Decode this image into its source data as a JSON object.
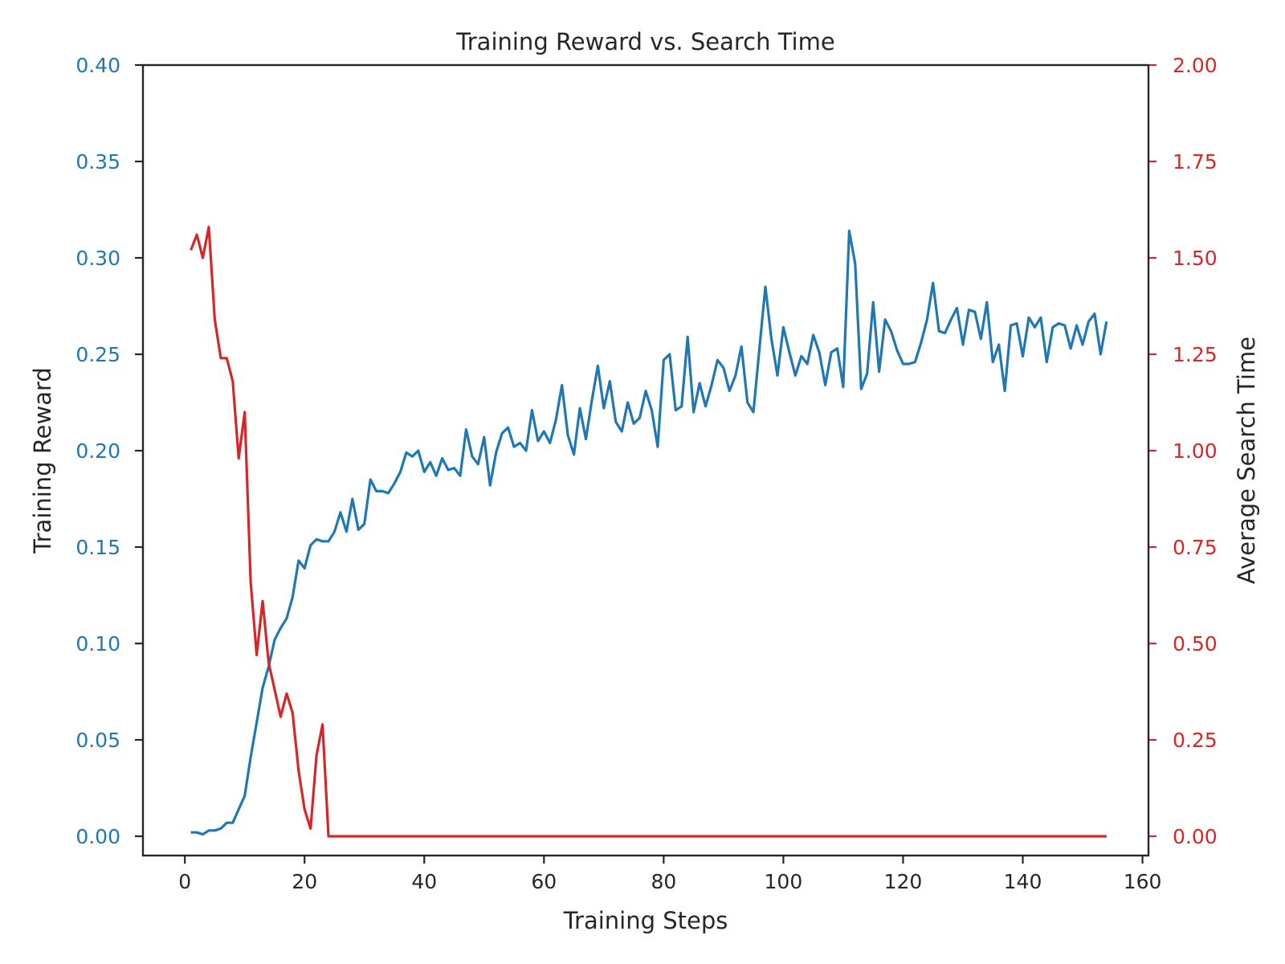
{
  "chart_data": {
    "type": "line",
    "title": "Training Reward vs. Search Time",
    "xlabel": "Training Steps",
    "xlim": [
      -7,
      161
    ],
    "xticks": [
      0,
      20,
      40,
      60,
      80,
      100,
      120,
      140,
      160
    ],
    "grid": false,
    "left_axis": {
      "label": "Training Reward",
      "color": "#1f77b4",
      "ylim": [
        -0.01,
        0.4
      ],
      "ticks": [
        "0.00",
        "0.05",
        "0.10",
        "0.15",
        "0.20",
        "0.25",
        "0.30",
        "0.35",
        "0.40"
      ]
    },
    "right_axis": {
      "label": "Average Search Time",
      "color": "#d62728",
      "ylim": [
        -0.05,
        2.0
      ],
      "ticks": [
        "0.00",
        "0.25",
        "0.50",
        "0.75",
        "1.00",
        "1.25",
        "1.50",
        "1.75",
        "2.00"
      ]
    },
    "series": [
      {
        "axis": "left",
        "color": "#1f77b4",
        "x": [
          1,
          2,
          3,
          4,
          5,
          6,
          7,
          8,
          9,
          10,
          11,
          12,
          13,
          14,
          15,
          16,
          17,
          18,
          19,
          20,
          21,
          22,
          23,
          24,
          25,
          26,
          27,
          28,
          29,
          30,
          31,
          32,
          33,
          34,
          35,
          36,
          37,
          38,
          39,
          40,
          41,
          42,
          43,
          44,
          45,
          46,
          47,
          48,
          49,
          50,
          51,
          52,
          53,
          54,
          55,
          56,
          57,
          58,
          59,
          60,
          61,
          62,
          63,
          64,
          65,
          66,
          67,
          68,
          69,
          70,
          71,
          72,
          73,
          74,
          75,
          76,
          77,
          78,
          79,
          80,
          81,
          82,
          83,
          84,
          85,
          86,
          87,
          88,
          89,
          90,
          91,
          92,
          93,
          94,
          95,
          96,
          97,
          98,
          99,
          100,
          101,
          102,
          103,
          104,
          105,
          106,
          107,
          108,
          109,
          110,
          111,
          112,
          113,
          114,
          115,
          116,
          117,
          118,
          119,
          120,
          121,
          122,
          123,
          124,
          125,
          126,
          127,
          128,
          129,
          130,
          131,
          132,
          133,
          134,
          135,
          136,
          137,
          138,
          139,
          140,
          141,
          142,
          143,
          144,
          145,
          146,
          147,
          148,
          149,
          150,
          151,
          152,
          153,
          154
        ],
        "values": [
          0.002,
          0.002,
          0.001,
          0.003,
          0.003,
          0.004,
          0.007,
          0.007,
          0.014,
          0.021,
          0.041,
          0.059,
          0.077,
          0.088,
          0.102,
          0.108,
          0.113,
          0.124,
          0.143,
          0.139,
          0.151,
          0.154,
          0.153,
          0.153,
          0.158,
          0.168,
          0.158,
          0.175,
          0.159,
          0.162,
          0.185,
          0.179,
          0.179,
          0.178,
          0.183,
          0.189,
          0.199,
          0.197,
          0.2,
          0.189,
          0.194,
          0.187,
          0.196,
          0.19,
          0.191,
          0.187,
          0.211,
          0.197,
          0.193,
          0.207,
          0.182,
          0.199,
          0.209,
          0.212,
          0.202,
          0.204,
          0.2,
          0.221,
          0.205,
          0.21,
          0.204,
          0.216,
          0.234,
          0.208,
          0.198,
          0.222,
          0.206,
          0.226,
          0.244,
          0.222,
          0.236,
          0.215,
          0.21,
          0.225,
          0.214,
          0.217,
          0.231,
          0.221,
          0.202,
          0.247,
          0.25,
          0.221,
          0.223,
          0.259,
          0.22,
          0.235,
          0.223,
          0.234,
          0.247,
          0.243,
          0.231,
          0.239,
          0.254,
          0.225,
          0.22,
          0.253,
          0.285,
          0.258,
          0.239,
          0.264,
          0.251,
          0.239,
          0.249,
          0.245,
          0.26,
          0.251,
          0.234,
          0.251,
          0.253,
          0.233,
          0.314,
          0.297,
          0.232,
          0.24,
          0.277,
          0.241,
          0.268,
          0.262,
          0.252,
          0.245,
          0.245,
          0.246,
          0.256,
          0.268,
          0.287,
          0.262,
          0.261,
          0.268,
          0.274,
          0.255,
          0.273,
          0.272,
          0.258,
          0.277,
          0.246,
          0.255,
          0.231,
          0.265,
          0.266,
          0.249,
          0.269,
          0.264,
          0.269,
          0.246,
          0.264,
          0.266,
          0.265,
          0.253,
          0.265,
          0.255,
          0.267,
          0.271,
          0.25,
          0.267
        ]
      },
      {
        "axis": "right",
        "color": "#d62728",
        "x": [
          1,
          2,
          3,
          4,
          5,
          6,
          7,
          8,
          9,
          10,
          11,
          12,
          13,
          14,
          15,
          16,
          17,
          18,
          19,
          20,
          21,
          22,
          23,
          24,
          154
        ],
        "values": [
          1.52,
          1.56,
          1.5,
          1.58,
          1.34,
          1.24,
          1.24,
          1.18,
          0.98,
          1.1,
          0.66,
          0.47,
          0.61,
          0.45,
          0.38,
          0.31,
          0.37,
          0.32,
          0.17,
          0.07,
          0.02,
          0.21,
          0.29,
          0.0,
          0.0
        ]
      }
    ]
  }
}
